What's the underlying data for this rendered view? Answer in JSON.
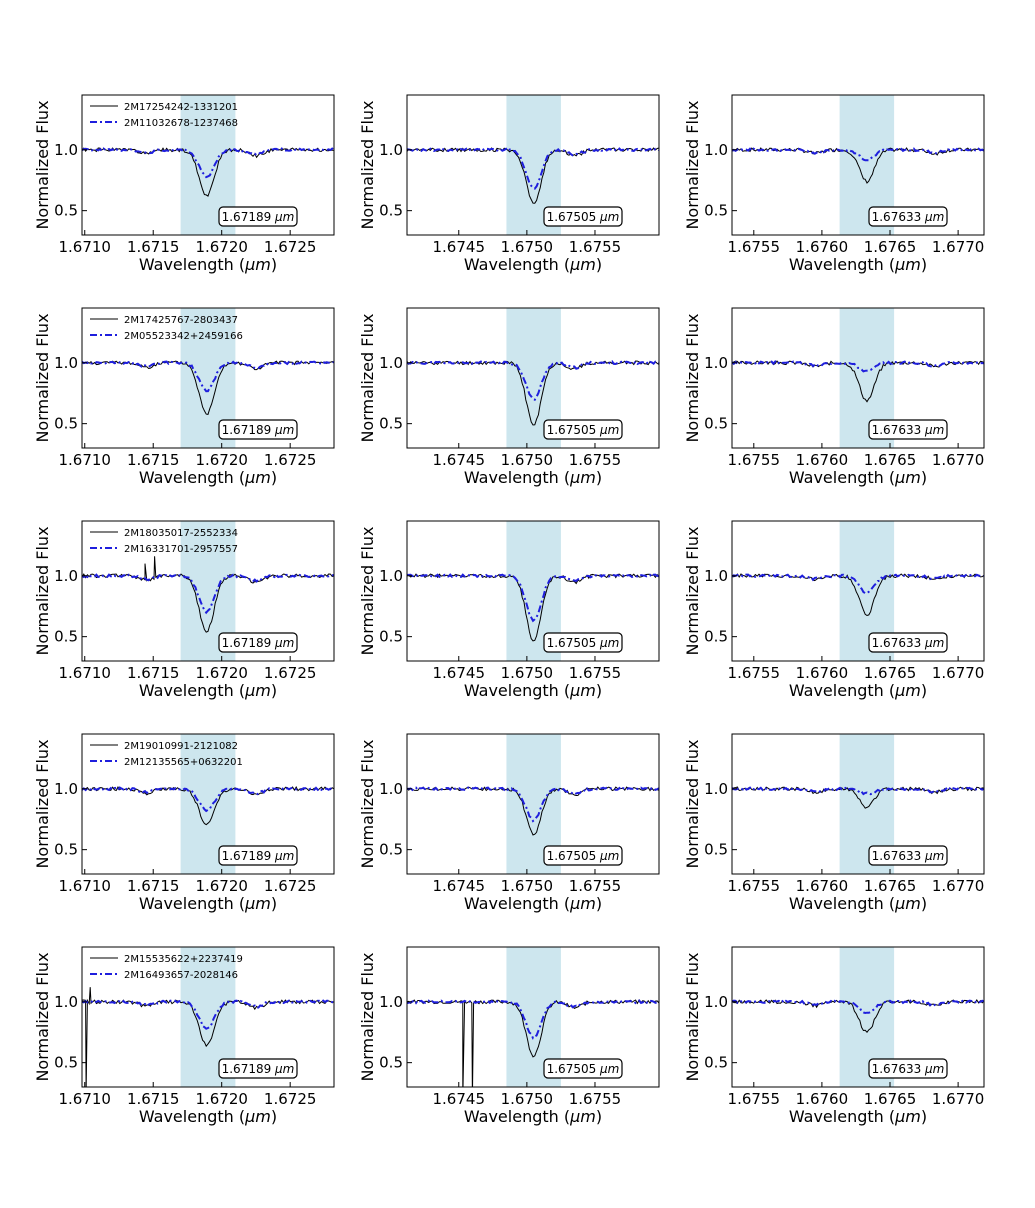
{
  "figure": {
    "xlabel": "Wavelength (",
    "xlabel_unit": "μm",
    "xlabel_close": ")",
    "ylabel": "Normalized Flux",
    "band_color": "#cde6ee",
    "spectrum_color": "#000000",
    "model_color": "#1f1fdd"
  },
  "chart_data": {
    "type": "line",
    "layout": "5x3 grid of spectral panels",
    "columns": [
      {
        "line_center": "1.67189",
        "annotation": "1.67189 μm",
        "band": [
          1.6717,
          1.6721
        ],
        "xlim": [
          1.67098,
          1.67282
        ],
        "xticks": [
          1.671,
          1.6715,
          1.672,
          1.6725
        ],
        "xtick_labels": [
          "1.6710",
          "1.6715",
          "1.6720",
          "1.6725"
        ],
        "features": [
          [
            1.67145,
            0.035
          ],
          [
            1.67225,
            0.05
          ]
        ]
      },
      {
        "line_center": "1.67505",
        "annotation": "1.67505 μm",
        "band": [
          1.67485,
          1.67525
        ],
        "xlim": [
          1.67412,
          1.67597
        ],
        "xticks": [
          1.6745,
          1.675,
          1.6755
        ],
        "xtick_labels": [
          "1.6745",
          "1.6750",
          "1.6755"
        ],
        "features": [
          [
            1.67535,
            0.05
          ]
        ]
      },
      {
        "line_center": "1.67633",
        "annotation": "1.67633 μm",
        "band": [
          1.67613,
          1.67653
        ],
        "xlim": [
          1.67534,
          1.67719
        ],
        "xticks": [
          1.6755,
          1.676,
          1.6765,
          1.677
        ],
        "xtick_labels": [
          "1.6755",
          "1.6760",
          "1.6765",
          "1.6770"
        ],
        "features": [
          [
            1.67595,
            0.03
          ],
          [
            1.67683,
            0.03
          ]
        ]
      }
    ],
    "ylim": [
      0.3,
      1.45
    ],
    "yticks": [
      0.5,
      1.0
    ],
    "ytick_labels": [
      "0.5",
      "1.0"
    ],
    "rows": [
      {
        "legend": [
          "2M17254242-1331201",
          "2M11032678-1237468"
        ],
        "obs_min": [
          0.62,
          0.56,
          0.74
        ],
        "model_min": [
          0.78,
          0.68,
          0.92
        ],
        "spikes": []
      },
      {
        "legend": [
          "2M17425767-2803437",
          "2M05523342+2459166"
        ],
        "obs_min": [
          0.58,
          0.49,
          0.69
        ],
        "model_min": [
          0.77,
          0.7,
          0.93
        ],
        "spikes": []
      },
      {
        "legend": [
          "2M18035017-2552334",
          "2M16331701-2957557"
        ],
        "obs_min": [
          0.55,
          0.47,
          0.68
        ],
        "model_min": [
          0.7,
          0.63,
          0.86
        ],
        "spikes": [
          {
            "col": 0,
            "x": 1.67144,
            "y": 1.1
          },
          {
            "col": 0,
            "x": 1.67151,
            "y": 1.16
          }
        ]
      },
      {
        "legend": [
          "2M19010991-2121082",
          "2M12135565+0632201"
        ],
        "obs_min": [
          0.7,
          0.63,
          0.85
        ],
        "model_min": [
          0.82,
          0.74,
          0.96
        ],
        "spikes": []
      },
      {
        "legend": [
          "2M15535622+2237419",
          "2M16493657-2028146"
        ],
        "obs_min": [
          0.64,
          0.56,
          0.75
        ],
        "model_min": [
          0.78,
          0.71,
          0.91
        ],
        "spikes": [
          {
            "col": 0,
            "x": 1.67101,
            "y": 0.25
          },
          {
            "col": 0,
            "x": 1.67104,
            "y": 1.12
          },
          {
            "col": 1,
            "x": 1.67453,
            "y": 0.2
          },
          {
            "col": 1,
            "x": 1.6746,
            "y": 0.2
          }
        ]
      }
    ]
  }
}
